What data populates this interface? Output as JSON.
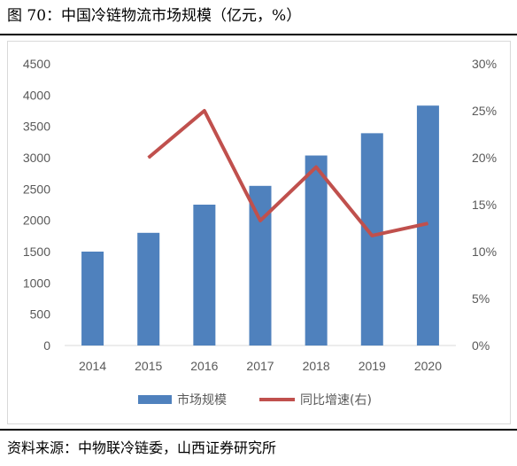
{
  "figure": {
    "title": "图 70：中国冷链物流市场规模（亿元，%）",
    "source": "资料来源：中物联冷链委，山西证券研究所"
  },
  "chart_data": {
    "type": "bar",
    "categories": [
      "2014",
      "2015",
      "2016",
      "2017",
      "2018",
      "2019",
      "2020"
    ],
    "series": [
      {
        "name": "市场规模",
        "type": "bar",
        "axis": "left",
        "color": "#4f81bd",
        "values": [
          1500,
          1800,
          2250,
          2550,
          3035,
          3391,
          3832
        ]
      },
      {
        "name": "同比增速(右)",
        "type": "line",
        "axis": "right",
        "color": "#c0504d",
        "values": [
          null,
          20.0,
          25.0,
          13.3,
          19.0,
          11.7,
          13.0
        ]
      }
    ],
    "y_left": {
      "min": 0,
      "max": 4500,
      "step": 500,
      "tick_labels": [
        "0",
        "500",
        "1000",
        "1500",
        "2000",
        "2500",
        "3000",
        "3500",
        "4000",
        "4500"
      ]
    },
    "y_right": {
      "min": 0,
      "max": 30,
      "step": 5,
      "tick_labels": [
        "0%",
        "5%",
        "10%",
        "15%",
        "20%",
        "25%",
        "30%"
      ]
    },
    "grid": false,
    "legend_position": "bottom"
  }
}
